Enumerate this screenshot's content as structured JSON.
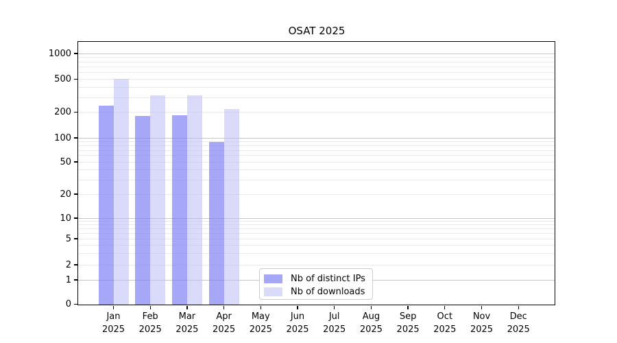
{
  "chart_data": {
    "type": "bar",
    "title": "OSAT 2025",
    "scale": "symlog",
    "categories": [
      "Jan",
      "Feb",
      "Mar",
      "Apr",
      "May",
      "Jun",
      "Jul",
      "Aug",
      "Sep",
      "Oct",
      "Nov",
      "Dec"
    ],
    "year_label": "2025",
    "series": [
      {
        "name": "Nb of distinct IPs",
        "fill": "#7a7af5",
        "alpha": 0.66,
        "values": [
          240,
          180,
          183,
          88,
          0,
          0,
          0,
          0,
          0,
          0,
          0,
          0
        ]
      },
      {
        "name": "Nb of downloads",
        "fill": "#bcbcf7",
        "alpha": 0.55,
        "values": [
          505,
          322,
          318,
          220,
          0,
          0,
          0,
          0,
          0,
          0,
          0,
          0
        ]
      }
    ],
    "yticks": {
      "values": [
        0,
        1,
        2,
        5,
        10,
        20,
        50,
        100,
        200,
        500,
        1000
      ],
      "labels": [
        "0",
        "1",
        "2",
        "5",
        "10",
        "20",
        "50",
        "100",
        "200",
        "500",
        "1000"
      ]
    },
    "ylim": [
      0,
      1400
    ],
    "grid": {
      "on": true,
      "major_values": [
        1,
        10,
        100,
        1000
      ],
      "minor_values": [
        2,
        3,
        4,
        5,
        6,
        7,
        8,
        9,
        20,
        30,
        40,
        50,
        60,
        70,
        80,
        90,
        200,
        300,
        400,
        500,
        600,
        700,
        800,
        900
      ],
      "major_color": "#c6c6c6",
      "minor_color": "#e9e9e9"
    },
    "legend": {
      "position": "lower center",
      "border_color": "#cccccc"
    },
    "colors": {
      "distinct_ips_rendered": "#a6a6f8",
      "downloads_rendered": "#dbdbf9",
      "axis": "#000000",
      "background": "#ffffff"
    }
  }
}
